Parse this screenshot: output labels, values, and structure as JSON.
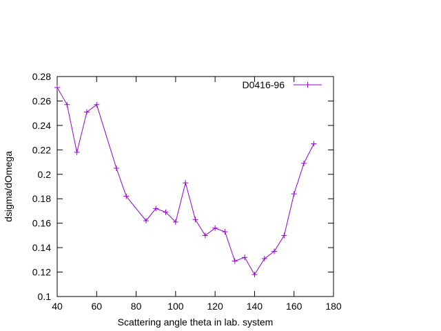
{
  "chart_data": {
    "type": "line",
    "title": "",
    "xlabel": "Scattering angle theta in lab. system",
    "ylabel": "dsigma/dOmega",
    "xlim": [
      40,
      180
    ],
    "ylim": [
      0.1,
      0.28
    ],
    "xticks": [
      40,
      60,
      80,
      100,
      120,
      140,
      160,
      180
    ],
    "xtick_labels": [
      "40",
      "60",
      "80",
      "100",
      "120",
      "140",
      "160",
      "180"
    ],
    "yticks": [
      0.1,
      0.12,
      0.14,
      0.16,
      0.18,
      0.2,
      0.22,
      0.24,
      0.26,
      0.28
    ],
    "ytick_labels": [
      "0.1",
      "0.12",
      "0.14",
      "0.16",
      "0.18",
      "0.2",
      "0.22",
      "0.24",
      "0.26",
      "0.28"
    ],
    "grid": false,
    "legend_position": "top-right",
    "series": [
      {
        "name": "D0416-96",
        "color": "#9400d3",
        "marker": "plus",
        "x": [
          40,
          45,
          50,
          55,
          60,
          70,
          75,
          85,
          90,
          95,
          100,
          105,
          110,
          115,
          120,
          125,
          130,
          135,
          140,
          145,
          150,
          155,
          160,
          165,
          170
        ],
        "y": [
          0.271,
          0.257,
          0.218,
          0.251,
          0.257,
          0.205,
          0.182,
          0.162,
          0.172,
          0.169,
          0.161,
          0.193,
          0.163,
          0.15,
          0.156,
          0.153,
          0.129,
          0.132,
          0.118,
          0.131,
          0.137,
          0.15,
          0.184,
          0.209,
          0.225
        ]
      }
    ]
  }
}
